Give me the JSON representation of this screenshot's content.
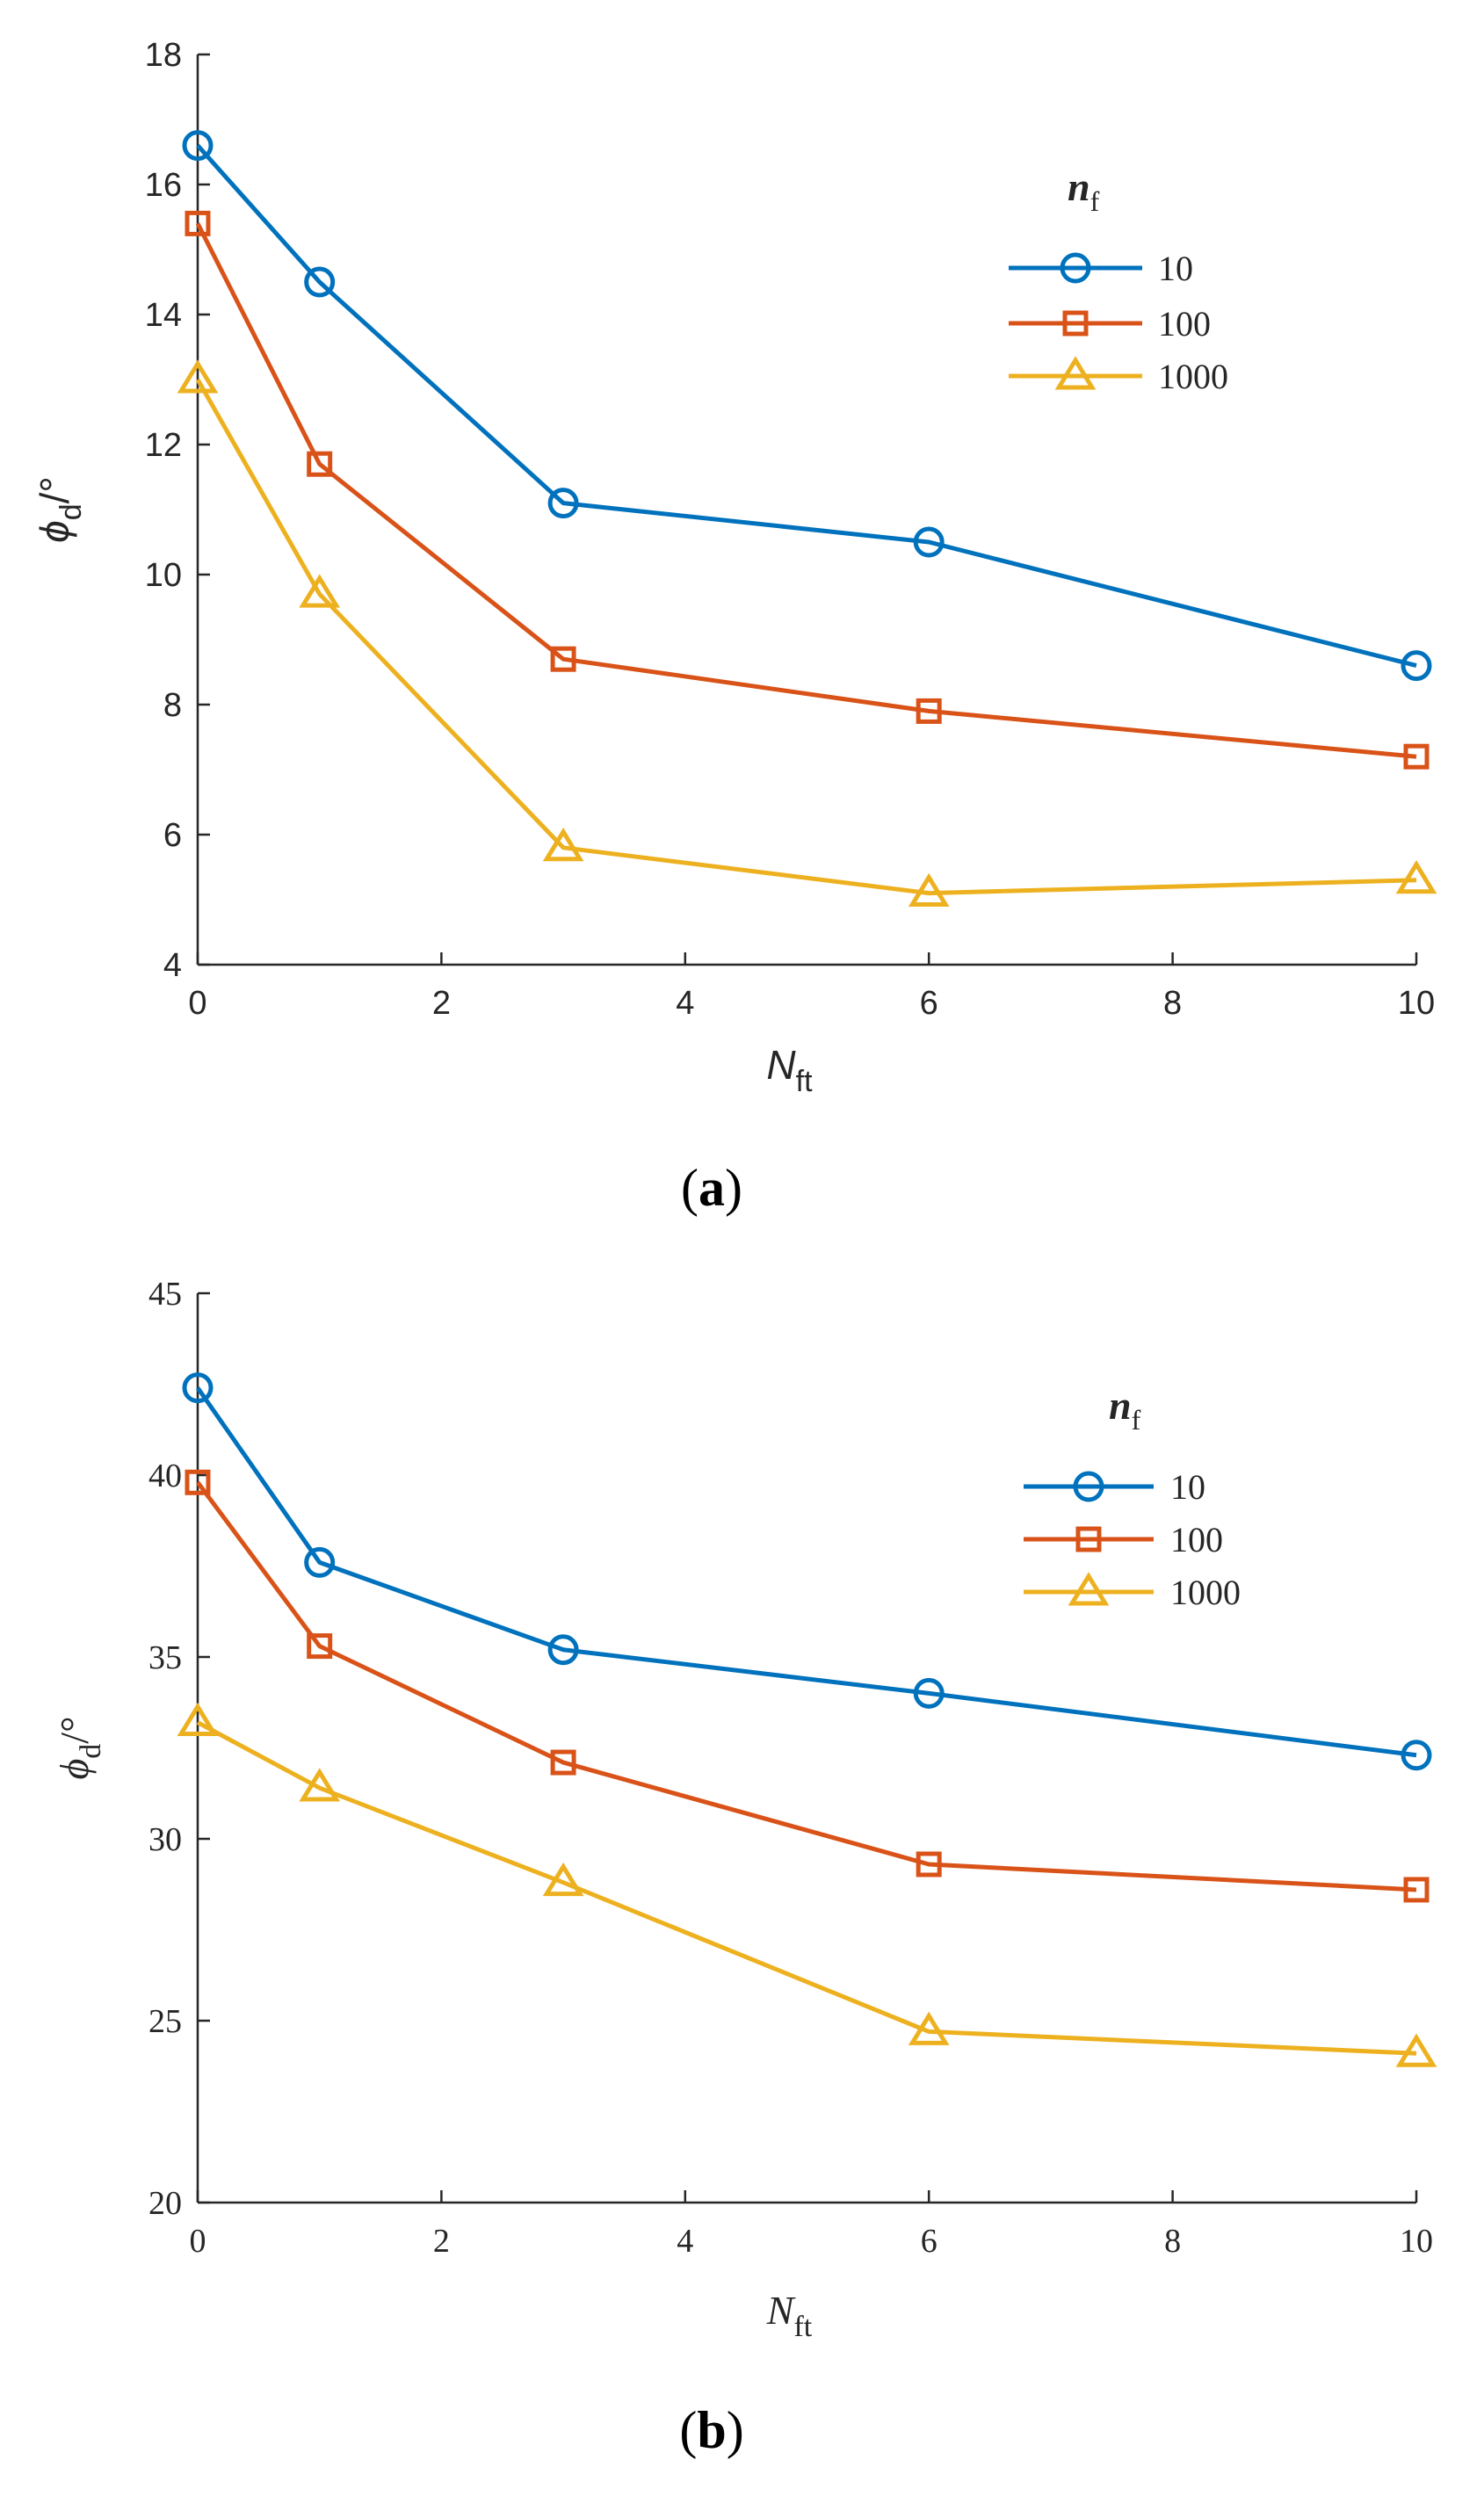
{
  "chart_data": [
    {
      "type": "line",
      "panel_label": "a",
      "ylabel": {
        "symbol": "ϕ",
        "subscript": "d",
        "unit": "/°"
      },
      "xlabel": {
        "symbol": "N",
        "subscript": "ft"
      },
      "legend_title": {
        "symbol": "n",
        "subscript": "f"
      },
      "x": [
        0,
        1,
        3,
        6,
        10
      ],
      "xlim": [
        0,
        10
      ],
      "ylim": [
        4,
        18
      ],
      "xticks": [
        0,
        2,
        4,
        6,
        8,
        10
      ],
      "yticks": [
        4,
        6,
        8,
        10,
        12,
        14,
        16,
        18
      ],
      "series": [
        {
          "name": "10",
          "color": "#0072BD",
          "marker": "circle",
          "values": [
            16.6,
            14.5,
            11.1,
            10.5,
            8.6
          ]
        },
        {
          "name": "100",
          "color": "#D95319",
          "marker": "square",
          "values": [
            15.4,
            11.7,
            8.7,
            7.9,
            7.2
          ]
        },
        {
          "name": "1000",
          "color": "#EDB120",
          "marker": "triangle",
          "values": [
            13.0,
            9.7,
            5.8,
            5.1,
            5.3
          ]
        }
      ],
      "legend_position": "upper-right"
    },
    {
      "type": "line",
      "panel_label": "b",
      "ylabel": {
        "symbol": "ϕ",
        "subscript": "d",
        "unit": "/°"
      },
      "xlabel": {
        "symbol": "N",
        "subscript": "ft"
      },
      "legend_title": {
        "symbol": "n",
        "subscript": "f"
      },
      "x": [
        0,
        1,
        3,
        6,
        10
      ],
      "xlim": [
        0,
        10
      ],
      "ylim": [
        20,
        45
      ],
      "xticks": [
        0,
        2,
        4,
        6,
        8,
        10
      ],
      "yticks": [
        20,
        25,
        30,
        35,
        40,
        45
      ],
      "series": [
        {
          "name": "10",
          "color": "#0072BD",
          "marker": "circle",
          "values": [
            42.4,
            37.6,
            35.2,
            34.0,
            32.3
          ]
        },
        {
          "name": "100",
          "color": "#D95319",
          "marker": "square",
          "values": [
            39.8,
            35.3,
            32.1,
            29.3,
            28.6
          ]
        },
        {
          "name": "1000",
          "color": "#EDB120",
          "marker": "triangle",
          "values": [
            33.2,
            31.4,
            28.8,
            24.7,
            24.1
          ]
        }
      ],
      "legend_position": "upper-right"
    }
  ]
}
